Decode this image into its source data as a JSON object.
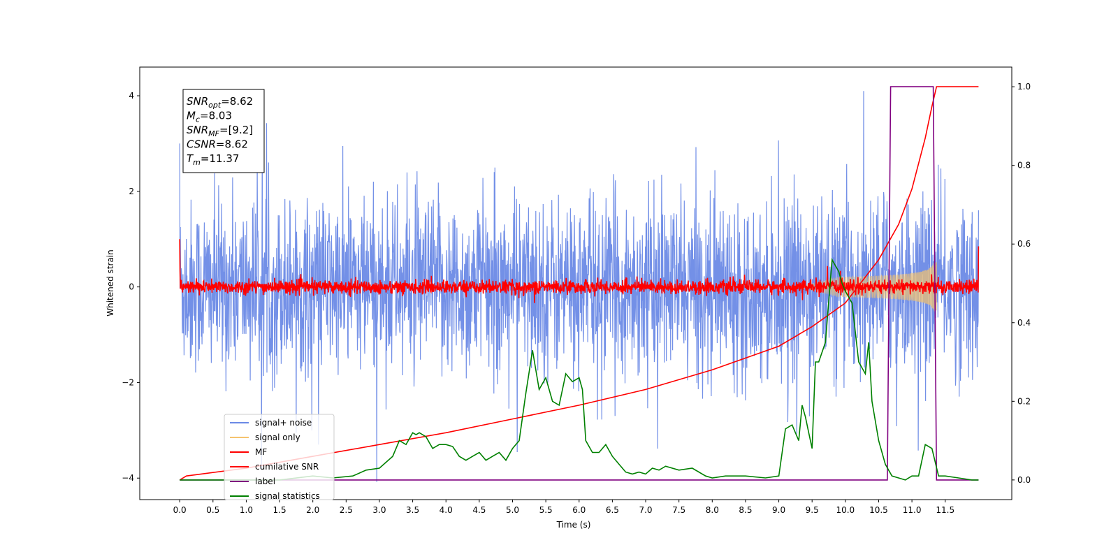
{
  "chart_data": {
    "type": "line",
    "xlabel": "Time (s)",
    "ylabel": "Whitened strain",
    "xlim": [
      -0.6,
      12.5
    ],
    "ylim": [
      -4.45,
      4.6
    ],
    "ylim_right": [
      -0.05,
      1.05
    ],
    "x_ticks": [
      "0.0",
      "0.5",
      "1.0",
      "1.5",
      "2.0",
      "2.5",
      "3.0",
      "3.5",
      "4.0",
      "4.5",
      "5.0",
      "5.5",
      "6.0",
      "6.5",
      "7.0",
      "7.5",
      "8.0",
      "8.5",
      "9.0",
      "9.5",
      "10.0",
      "10.5",
      "11.0",
      "11.5"
    ],
    "y_ticks": [
      "−4",
      "−2",
      "0",
      "2",
      "4"
    ],
    "y_ticks_right": [
      "0.0",
      "0.2",
      "0.4",
      "0.6",
      "0.8",
      "1.0"
    ],
    "annotation": [
      {
        "main": "SNR",
        "sub": "opt",
        "value": "=8.62"
      },
      {
        "main": "M",
        "sub": "c",
        "value": "=8.03"
      },
      {
        "main": "SNR",
        "sub": "MF",
        "value": "=[9.2]"
      },
      {
        "main": "CSNR",
        "sub": "",
        "value": "=8.62"
      },
      {
        "main": "T",
        "sub": "m",
        "value": "=11.37"
      }
    ],
    "legend_position": "lower-left",
    "series": [
      {
        "name": "signal+ noise",
        "color": "#6b8ae6",
        "description_values": {
          "x_range": [
            0,
            12
          ],
          "amplitude": "noise, mostly within ±2.5, spikes to ±4"
        }
      },
      {
        "name": "signal only",
        "color": "#f5c36e",
        "description_values": {
          "chirp_start": 9.5,
          "chirp_end": 11.37,
          "max_amplitude": 0.6
        }
      },
      {
        "name": "MF",
        "color": "#ff0000",
        "description_values": {
          "baseline": 0,
          "noise_amplitude": 0.15,
          "edge_values": [
            1.0,
            0.8
          ]
        }
      },
      {
        "name": "cumilative SNR",
        "color": "#ff0000",
        "axis": "right",
        "x": [
          0.0,
          0.1,
          1,
          2,
          3,
          4,
          5,
          6,
          7,
          8,
          9,
          9.5,
          10,
          10.5,
          10.8,
          11.0,
          11.2,
          11.3,
          11.37,
          11.5,
          12.0
        ],
        "y": [
          0.0,
          0.01,
          0.03,
          0.06,
          0.09,
          0.12,
          0.155,
          0.19,
          0.23,
          0.28,
          0.34,
          0.39,
          0.45,
          0.56,
          0.65,
          0.74,
          0.87,
          0.95,
          1.0,
          1.0,
          1.0
        ]
      },
      {
        "name": "label",
        "color": "#800080",
        "axis": "right",
        "x": [
          0,
          10.63,
          10.68,
          11.32,
          11.37,
          12.0
        ],
        "y": [
          0,
          0,
          1,
          1,
          0,
          0
        ]
      },
      {
        "name": "signal statistics",
        "color": "#008000",
        "axis": "right",
        "x": [
          0,
          0.5,
          1,
          1.5,
          2,
          2.3,
          2.6,
          2.8,
          3.0,
          3.1,
          3.2,
          3.3,
          3.4,
          3.5,
          3.55,
          3.6,
          3.7,
          3.8,
          3.9,
          4.0,
          4.1,
          4.2,
          4.3,
          4.4,
          4.5,
          4.6,
          4.7,
          4.8,
          4.9,
          5.0,
          5.1,
          5.2,
          5.3,
          5.35,
          5.4,
          5.5,
          5.6,
          5.7,
          5.8,
          5.9,
          6.0,
          6.05,
          6.1,
          6.2,
          6.3,
          6.4,
          6.5,
          6.6,
          6.7,
          6.8,
          6.9,
          7.0,
          7.1,
          7.2,
          7.3,
          7.5,
          7.7,
          7.9,
          8.0,
          8.2,
          8.5,
          8.8,
          9.0,
          9.1,
          9.2,
          9.3,
          9.35,
          9.4,
          9.45,
          9.5,
          9.55,
          9.6,
          9.7,
          9.8,
          9.9,
          9.95,
          10.0,
          10.1,
          10.2,
          10.3,
          10.35,
          10.4,
          10.5,
          10.6,
          10.7,
          10.8,
          10.9,
          11.0,
          11.1,
          11.2,
          11.3,
          11.4,
          11.5,
          11.7,
          11.9,
          12.0
        ],
        "y": [
          0.0,
          0.0,
          0.0,
          0.0,
          0.01,
          0.005,
          0.01,
          0.025,
          0.03,
          0.045,
          0.06,
          0.1,
          0.09,
          0.12,
          0.115,
          0.12,
          0.11,
          0.08,
          0.09,
          0.09,
          0.085,
          0.06,
          0.05,
          0.06,
          0.07,
          0.05,
          0.06,
          0.07,
          0.05,
          0.08,
          0.1,
          0.22,
          0.33,
          0.28,
          0.23,
          0.26,
          0.2,
          0.19,
          0.27,
          0.25,
          0.26,
          0.23,
          0.1,
          0.07,
          0.07,
          0.09,
          0.06,
          0.04,
          0.02,
          0.015,
          0.02,
          0.015,
          0.03,
          0.025,
          0.035,
          0.025,
          0.03,
          0.01,
          0.005,
          0.01,
          0.01,
          0.005,
          0.01,
          0.13,
          0.14,
          0.1,
          0.19,
          0.16,
          0.12,
          0.08,
          0.3,
          0.3,
          0.35,
          0.56,
          0.53,
          0.5,
          0.48,
          0.45,
          0.3,
          0.27,
          0.35,
          0.2,
          0.1,
          0.04,
          0.01,
          0.005,
          0.0,
          0.01,
          0.01,
          0.09,
          0.08,
          0.01,
          0.01,
          0.005,
          0.0,
          0.0
        ]
      }
    ]
  }
}
